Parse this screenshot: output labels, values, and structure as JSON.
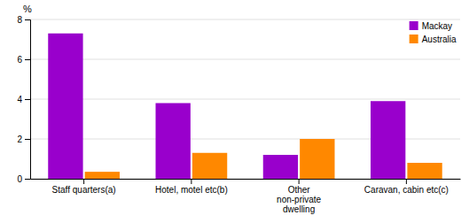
{
  "chart_data": {
    "type": "bar",
    "y_label": "%",
    "categories": [
      "Staff quarters(a)",
      "Hotel, motel etc(b)",
      "Other\nnon-private\ndwelling",
      "Caravan, cabin etc(c)"
    ],
    "series": [
      {
        "name": "Mackay",
        "color": "#9900cc",
        "values": [
          7.3,
          3.8,
          1.2,
          3.9
        ]
      },
      {
        "name": "Australia",
        "color": "#ff8800",
        "values": [
          0.35,
          1.3,
          2.0,
          0.8
        ]
      }
    ],
    "ylim": [
      0,
      8
    ],
    "yticks": [
      0,
      2,
      4,
      6,
      8
    ],
    "grid": true,
    "legend": "upper right"
  }
}
